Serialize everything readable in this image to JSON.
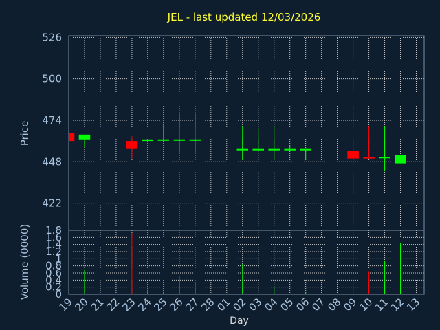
{
  "chart_data": {
    "type": "candlestick",
    "title": "JEL - last updated 12/03/2026",
    "price_axis": {
      "label": "Price",
      "ylim": [
        405,
        527
      ],
      "ticks": [
        526,
        500,
        474,
        448,
        422
      ]
    },
    "volume_axis": {
      "label": "Volume (0000)",
      "ylim": [
        0,
        1.8
      ],
      "ticks": [
        "0",
        "0.2",
        "0.4",
        "0.6",
        "0.8",
        "1",
        "1.2",
        "1.4",
        "1.6",
        "1.8"
      ]
    },
    "xlabel": "Day",
    "x_ticks": [
      "19",
      "20",
      "21",
      "22",
      "23",
      "24",
      "25",
      "26",
      "27",
      "28",
      "01",
      "02",
      "03",
      "04",
      "05",
      "06",
      "07",
      "08",
      "09",
      "10",
      "11",
      "12",
      "13"
    ],
    "grid": true,
    "colors": {
      "up": "#00ff00",
      "down": "#ff0000",
      "background": "#0f1e2e",
      "title": "#ffff33",
      "axis_text": "#a9c2dc"
    },
    "candles": [
      {
        "day": "19",
        "open": 466,
        "close": 461,
        "high": 466,
        "low": 461
      },
      {
        "day": "20",
        "open": 462,
        "close": 465,
        "high": 465,
        "low": 457
      },
      {
        "day": "23",
        "open": 461,
        "close": 456,
        "high": 464,
        "low": 450
      },
      {
        "day": "24",
        "open": 461,
        "close": 462,
        "high": 462,
        "low": 461
      },
      {
        "day": "25",
        "open": 462,
        "close": 462,
        "high": 472,
        "low": 461
      },
      {
        "day": "26",
        "open": 462,
        "close": 462,
        "high": 478,
        "low": 453
      },
      {
        "day": "27",
        "open": 462,
        "close": 462,
        "high": 478,
        "low": 453
      },
      {
        "day": "02",
        "open": 456,
        "close": 456,
        "high": 470,
        "low": 449
      },
      {
        "day": "03",
        "open": 456,
        "close": 456,
        "high": 469,
        "low": 455
      },
      {
        "day": "04",
        "open": 456,
        "close": 456,
        "high": 470,
        "low": 449
      },
      {
        "day": "05",
        "open": 456,
        "close": 456,
        "high": 458,
        "low": 455
      },
      {
        "day": "06",
        "open": 456,
        "close": 456,
        "high": 456,
        "low": 449
      },
      {
        "day": "09",
        "open": 455,
        "close": 450,
        "high": 462,
        "low": 445
      },
      {
        "day": "10",
        "open": 451,
        "close": 450,
        "high": 470,
        "low": 450
      },
      {
        "day": "11",
        "open": 451,
        "close": 451,
        "high": 470,
        "low": 442
      },
      {
        "day": "12",
        "open": 447,
        "close": 452,
        "high": 452,
        "low": 447
      }
    ],
    "volume": [
      {
        "day": "20",
        "value": 0.7,
        "color": "#00ff00"
      },
      {
        "day": "23",
        "value": 1.72,
        "color": "#ff0000"
      },
      {
        "day": "24",
        "value": 0.12,
        "color": "#00ff00"
      },
      {
        "day": "25",
        "value": 0.08,
        "color": "#00ff00"
      },
      {
        "day": "26",
        "value": 0.5,
        "color": "#00ff00"
      },
      {
        "day": "27",
        "value": 0.33,
        "color": "#00ff00"
      },
      {
        "day": "02",
        "value": 0.85,
        "color": "#00ff00"
      },
      {
        "day": "04",
        "value": 0.2,
        "color": "#00ff00"
      },
      {
        "day": "06",
        "value": 0.06,
        "color": "#00ff00"
      },
      {
        "day": "09",
        "value": 0.2,
        "color": "#ff0000"
      },
      {
        "day": "10",
        "value": 0.65,
        "color": "#ff0000"
      },
      {
        "day": "11",
        "value": 0.95,
        "color": "#00ff00"
      },
      {
        "day": "12",
        "value": 1.45,
        "color": "#00ff00"
      }
    ]
  }
}
